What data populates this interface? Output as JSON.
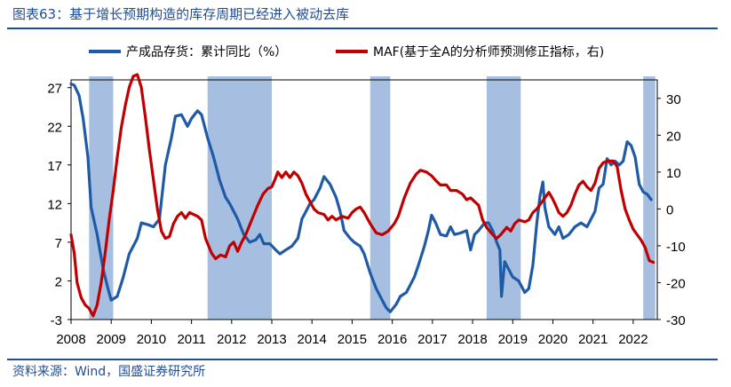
{
  "figure": {
    "title": "图表63：基于增长预期构造的库存周期已经进入被动去库",
    "source": "资料来源：Wind，国盛证券研究所"
  },
  "colors": {
    "inventory": "#1f5aa6",
    "maf": "#c00000",
    "shade": "#a6bfe0",
    "frame": "#1f4e96"
  },
  "chart_data": {
    "type": "line",
    "title": "基于增长预期构造的库存周期已经进入被动去库",
    "legend_position": "top",
    "x_range": [
      2008,
      2022.6
    ],
    "x_ticks": [
      "2008",
      "2009",
      "2010",
      "2011",
      "2012",
      "2013",
      "2014",
      "2015",
      "2016",
      "2017",
      "2018",
      "2019",
      "2020",
      "2021",
      "2022"
    ],
    "y_left": {
      "range": [
        -3,
        28
      ],
      "ticks": [
        "27",
        "22",
        "17",
        "12",
        "7",
        "2",
        "-3"
      ]
    },
    "y_right": {
      "range": [
        -30,
        35
      ],
      "ticks": [
        "30",
        "20",
        "10",
        "0",
        "-10",
        "-20",
        "-30"
      ]
    },
    "shaded_periods": [
      [
        2008.45,
        2009.05
      ],
      [
        2011.4,
        2013.0
      ],
      [
        2015.45,
        2015.95
      ],
      [
        2018.35,
        2019.2
      ],
      [
        2022.25,
        2022.55
      ]
    ],
    "series": [
      {
        "name": "产成品存货：累计同比（%）",
        "axis": "left",
        "points": [
          [
            2008.0,
            27.5
          ],
          [
            2008.08,
            27.3
          ],
          [
            2008.2,
            26.0
          ],
          [
            2008.3,
            23.0
          ],
          [
            2008.42,
            18.0
          ],
          [
            2008.5,
            11.5
          ],
          [
            2008.65,
            8.0
          ],
          [
            2008.8,
            3.5
          ],
          [
            2008.92,
            1.0
          ],
          [
            2009.0,
            -0.5
          ],
          [
            2009.15,
            0.0
          ],
          [
            2009.3,
            2.5
          ],
          [
            2009.45,
            5.5
          ],
          [
            2009.55,
            6.5
          ],
          [
            2009.65,
            7.5
          ],
          [
            2009.75,
            9.5
          ],
          [
            2009.9,
            9.3
          ],
          [
            2010.05,
            9.0
          ],
          [
            2010.2,
            10.0
          ],
          [
            2010.35,
            17.0
          ],
          [
            2010.5,
            20.5
          ],
          [
            2010.6,
            23.3
          ],
          [
            2010.75,
            23.5
          ],
          [
            2010.9,
            22.0
          ],
          [
            2011.0,
            23.0
          ],
          [
            2011.15,
            24.0
          ],
          [
            2011.25,
            23.5
          ],
          [
            2011.4,
            20.5
          ],
          [
            2011.55,
            18.0
          ],
          [
            2011.7,
            15.0
          ],
          [
            2011.85,
            12.8
          ],
          [
            2011.95,
            12.0
          ],
          [
            2012.05,
            11.0
          ],
          [
            2012.15,
            10.0
          ],
          [
            2012.3,
            8.0
          ],
          [
            2012.45,
            7.0
          ],
          [
            2012.6,
            7.3
          ],
          [
            2012.7,
            8.0
          ],
          [
            2012.8,
            6.8
          ],
          [
            2012.95,
            6.8
          ],
          [
            2013.1,
            6.0
          ],
          [
            2013.2,
            5.5
          ],
          [
            2013.35,
            6.0
          ],
          [
            2013.5,
            6.5
          ],
          [
            2013.65,
            7.5
          ],
          [
            2013.75,
            10.0
          ],
          [
            2013.85,
            11.0
          ],
          [
            2013.95,
            12.0
          ],
          [
            2014.05,
            12.5
          ],
          [
            2014.2,
            14.0
          ],
          [
            2014.3,
            15.5
          ],
          [
            2014.45,
            14.5
          ],
          [
            2014.6,
            12.8
          ],
          [
            2014.7,
            11.0
          ],
          [
            2014.8,
            8.5
          ],
          [
            2014.95,
            7.5
          ],
          [
            2015.05,
            7.0
          ],
          [
            2015.2,
            6.5
          ],
          [
            2015.3,
            5.5
          ],
          [
            2015.45,
            3.0
          ],
          [
            2015.6,
            1.0
          ],
          [
            2015.75,
            -0.5
          ],
          [
            2015.85,
            -1.5
          ],
          [
            2015.95,
            -2.0
          ],
          [
            2016.1,
            -1.0
          ],
          [
            2016.2,
            0.0
          ],
          [
            2016.35,
            0.5
          ],
          [
            2016.45,
            1.5
          ],
          [
            2016.55,
            2.5
          ],
          [
            2016.65,
            4.0
          ],
          [
            2016.8,
            6.5
          ],
          [
            2016.9,
            8.5
          ],
          [
            2016.98,
            10.5
          ],
          [
            2017.08,
            9.5
          ],
          [
            2017.2,
            8.0
          ],
          [
            2017.35,
            7.8
          ],
          [
            2017.45,
            9.0
          ],
          [
            2017.55,
            8.0
          ],
          [
            2017.7,
            8.2
          ],
          [
            2017.85,
            8.5
          ],
          [
            2017.95,
            6.0
          ],
          [
            2018.05,
            8.0
          ],
          [
            2018.15,
            8.5
          ],
          [
            2018.3,
            9.5
          ],
          [
            2018.4,
            9.5
          ],
          [
            2018.5,
            8.5
          ],
          [
            2018.6,
            7.0
          ],
          [
            2018.68,
            6.0
          ],
          [
            2018.72,
            0.0
          ],
          [
            2018.8,
            4.5
          ],
          [
            2018.9,
            3.5
          ],
          [
            2019.0,
            2.5
          ],
          [
            2019.15,
            2.0
          ],
          [
            2019.3,
            0.5
          ],
          [
            2019.4,
            1.0
          ],
          [
            2019.5,
            4.0
          ],
          [
            2019.6,
            9.5
          ],
          [
            2019.68,
            13.0
          ],
          [
            2019.75,
            14.8
          ],
          [
            2019.8,
            11.5
          ],
          [
            2019.9,
            9.0
          ],
          [
            2020.05,
            8.0
          ],
          [
            2020.15,
            9.0
          ],
          [
            2020.25,
            7.5
          ],
          [
            2020.4,
            8.0
          ],
          [
            2020.55,
            9.0
          ],
          [
            2020.7,
            9.5
          ],
          [
            2020.85,
            9.0
          ],
          [
            2020.95,
            10.0
          ],
          [
            2021.05,
            11.0
          ],
          [
            2021.15,
            14.0
          ],
          [
            2021.25,
            14.5
          ],
          [
            2021.35,
            17.8
          ],
          [
            2021.45,
            17.0
          ],
          [
            2021.55,
            17.5
          ],
          [
            2021.65,
            17.0
          ],
          [
            2021.75,
            17.5
          ],
          [
            2021.85,
            20.0
          ],
          [
            2021.95,
            19.5
          ],
          [
            2022.05,
            18.0
          ],
          [
            2022.15,
            14.5
          ],
          [
            2022.25,
            13.5
          ],
          [
            2022.35,
            13.2
          ],
          [
            2022.45,
            12.5
          ]
        ]
      },
      {
        "name": "MAF(基于全A的分析师预测修正指标，右)",
        "axis": "right",
        "points": [
          [
            2008.0,
            -7.0
          ],
          [
            2008.08,
            -12.0
          ],
          [
            2008.15,
            -20.0
          ],
          [
            2008.25,
            -24.0
          ],
          [
            2008.35,
            -26.0
          ],
          [
            2008.45,
            -27.0
          ],
          [
            2008.55,
            -29.0
          ],
          [
            2008.65,
            -26.0
          ],
          [
            2008.75,
            -20.0
          ],
          [
            2008.85,
            -12.0
          ],
          [
            2008.95,
            -3.0
          ],
          [
            2009.05,
            5.0
          ],
          [
            2009.15,
            14.0
          ],
          [
            2009.25,
            22.0
          ],
          [
            2009.35,
            28.0
          ],
          [
            2009.45,
            33.0
          ],
          [
            2009.55,
            36.0
          ],
          [
            2009.65,
            37.0
          ],
          [
            2009.75,
            33.0
          ],
          [
            2009.85,
            25.0
          ],
          [
            2009.95,
            16.0
          ],
          [
            2010.05,
            8.0
          ],
          [
            2010.15,
            0.0
          ],
          [
            2010.25,
            -6.0
          ],
          [
            2010.35,
            -8.0
          ],
          [
            2010.45,
            -7.5
          ],
          [
            2010.55,
            -4.0
          ],
          [
            2010.65,
            -2.0
          ],
          [
            2010.75,
            -1.0
          ],
          [
            2010.85,
            -2.5
          ],
          [
            2010.95,
            -1.0
          ],
          [
            2011.05,
            -1.5
          ],
          [
            2011.15,
            -2.0
          ],
          [
            2011.25,
            -3.0
          ],
          [
            2011.35,
            -8.0
          ],
          [
            2011.5,
            -12.0
          ],
          [
            2011.6,
            -13.5
          ],
          [
            2011.72,
            -12.5
          ],
          [
            2011.85,
            -13.0
          ],
          [
            2011.95,
            -10.0
          ],
          [
            2012.05,
            -9.0
          ],
          [
            2012.15,
            -11.5
          ],
          [
            2012.25,
            -9.0
          ],
          [
            2012.35,
            -7.0
          ],
          [
            2012.5,
            -3.0
          ],
          [
            2012.65,
            1.0
          ],
          [
            2012.78,
            4.0
          ],
          [
            2012.9,
            5.5
          ],
          [
            2013.0,
            6.0
          ],
          [
            2013.08,
            8.0
          ],
          [
            2013.15,
            10.0
          ],
          [
            2013.25,
            8.5
          ],
          [
            2013.35,
            10.0
          ],
          [
            2013.45,
            8.5
          ],
          [
            2013.55,
            10.0
          ],
          [
            2013.65,
            9.0
          ],
          [
            2013.75,
            7.0
          ],
          [
            2013.85,
            4.0
          ],
          [
            2013.95,
            2.0
          ],
          [
            2014.05,
            0.0
          ],
          [
            2014.15,
            -1.0
          ],
          [
            2014.3,
            -1.5
          ],
          [
            2014.4,
            -3.0
          ],
          [
            2014.5,
            -2.0
          ],
          [
            2014.6,
            -3.0
          ],
          [
            2014.75,
            -2.0
          ],
          [
            2014.9,
            -2.5
          ],
          [
            2015.0,
            -1.0
          ],
          [
            2015.1,
            0.0
          ],
          [
            2015.2,
            0.5
          ],
          [
            2015.3,
            -1.0
          ],
          [
            2015.45,
            -4.0
          ],
          [
            2015.6,
            -6.5
          ],
          [
            2015.75,
            -7.0
          ],
          [
            2015.9,
            -6.0
          ],
          [
            2016.05,
            -4.0
          ],
          [
            2016.15,
            -2.0
          ],
          [
            2016.3,
            3.0
          ],
          [
            2016.45,
            7.0
          ],
          [
            2016.6,
            9.5
          ],
          [
            2016.7,
            10.5
          ],
          [
            2016.85,
            10.0
          ],
          [
            2016.98,
            9.0
          ],
          [
            2017.1,
            7.5
          ],
          [
            2017.2,
            6.5
          ],
          [
            2017.35,
            6.5
          ],
          [
            2017.45,
            5.0
          ],
          [
            2017.6,
            5.0
          ],
          [
            2017.75,
            4.0
          ],
          [
            2017.85,
            2.5
          ],
          [
            2017.95,
            3.0
          ],
          [
            2018.05,
            2.0
          ],
          [
            2018.15,
            1.0
          ],
          [
            2018.25,
            -3.0
          ],
          [
            2018.35,
            -5.0
          ],
          [
            2018.5,
            -7.0
          ],
          [
            2018.6,
            -8.0
          ],
          [
            2018.7,
            -7.0
          ],
          [
            2018.85,
            -5.0
          ],
          [
            2018.95,
            -6.0
          ],
          [
            2019.05,
            -4.0
          ],
          [
            2019.15,
            -3.0
          ],
          [
            2019.3,
            -3.5
          ],
          [
            2019.4,
            -3.0
          ],
          [
            2019.5,
            -1.0
          ],
          [
            2019.6,
            0.0
          ],
          [
            2019.7,
            1.5
          ],
          [
            2019.8,
            3.0
          ],
          [
            2019.9,
            4.5
          ],
          [
            2019.98,
            3.0
          ],
          [
            2020.05,
            1.5
          ],
          [
            2020.15,
            -1.0
          ],
          [
            2020.25,
            -2.0
          ],
          [
            2020.35,
            -1.0
          ],
          [
            2020.45,
            1.0
          ],
          [
            2020.55,
            4.0
          ],
          [
            2020.65,
            6.5
          ],
          [
            2020.75,
            7.5
          ],
          [
            2020.85,
            6.0
          ],
          [
            2020.95,
            5.0
          ],
          [
            2021.05,
            7.0
          ],
          [
            2021.15,
            11.0
          ],
          [
            2021.25,
            12.5
          ],
          [
            2021.35,
            13.0
          ],
          [
            2021.5,
            13.0
          ],
          [
            2021.6,
            11.5
          ],
          [
            2021.7,
            5.0
          ],
          [
            2021.8,
            0.0
          ],
          [
            2021.9,
            -3.0
          ],
          [
            2022.0,
            -5.5
          ],
          [
            2022.1,
            -7.0
          ],
          [
            2022.2,
            -8.5
          ],
          [
            2022.3,
            -10.5
          ],
          [
            2022.4,
            -14.0
          ],
          [
            2022.5,
            -14.5
          ]
        ]
      }
    ]
  }
}
